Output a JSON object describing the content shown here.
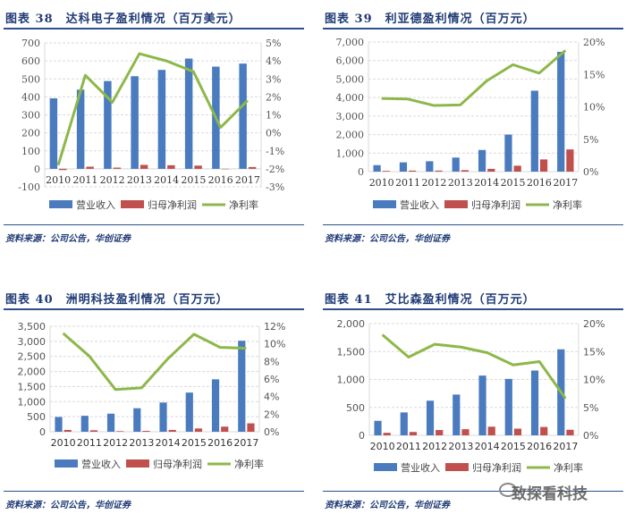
{
  "legend": {
    "revenue": "营业收入",
    "profit": "归母净利润",
    "margin": "净利率"
  },
  "source": "资料来源：公司公告，华创证券",
  "watermark": "致探看科技",
  "colors": {
    "revenue": "#4a7bbf",
    "profit": "#c0504d",
    "margin": "#8db849",
    "title": "#1f3a75"
  },
  "chart_data": [
    {
      "type": "bar+line",
      "figure_no": "图表 38",
      "title": "达科电子盈利情况（百万美元）",
      "categories": [
        "2010",
        "2011",
        "2012",
        "2013",
        "2014",
        "2015",
        "2016",
        "2017"
      ],
      "series": [
        {
          "name": "营业收入",
          "axis": "left",
          "type": "bar",
          "values": [
            392,
            440,
            488,
            515,
            550,
            613,
            568,
            585
          ]
        },
        {
          "name": "归母净利润",
          "axis": "left",
          "type": "bar",
          "values": [
            -7,
            12,
            7,
            22,
            20,
            18,
            0,
            10
          ]
        },
        {
          "name": "净利率",
          "axis": "right",
          "type": "line",
          "values": [
            -1.8,
            3.2,
            1.7,
            4.4,
            4.0,
            3.4,
            0.3,
            1.8
          ]
        }
      ],
      "ylim": [
        -100,
        700
      ],
      "yticks": [
        -100,
        0,
        100,
        200,
        300,
        400,
        500,
        600,
        700
      ],
      "ytick_labels": [
        "-100",
        "0",
        "100",
        "200",
        "300",
        "400",
        "500",
        "600",
        "700"
      ],
      "y2lim": [
        -3,
        5
      ],
      "y2ticks": [
        -3,
        -2,
        -1,
        0,
        1,
        2,
        3,
        4,
        5
      ],
      "y2tick_labels": [
        "-3%",
        "-2%",
        "-1%",
        "0%",
        "1%",
        "2%",
        "3%",
        "4%",
        "5%"
      ],
      "grid": true,
      "legend": "bottom"
    },
    {
      "type": "bar+line",
      "figure_no": "图表 39",
      "title": "利亚德盈利情况（百万元）",
      "categories": [
        "2010",
        "2011",
        "2012",
        "2013",
        "2014",
        "2015",
        "2016",
        "2017"
      ],
      "series": [
        {
          "name": "营业收入",
          "axis": "left",
          "type": "bar",
          "values": [
            350,
            500,
            560,
            760,
            1170,
            2000,
            4370,
            6470
          ]
        },
        {
          "name": "归母净利润",
          "axis": "left",
          "type": "bar",
          "values": [
            40,
            55,
            55,
            80,
            150,
            320,
            660,
            1200
          ]
        },
        {
          "name": "净利率",
          "axis": "right",
          "type": "line",
          "values": [
            11.3,
            11.2,
            10.2,
            10.3,
            14.0,
            16.5,
            15.2,
            18.7
          ]
        }
      ],
      "ylim": [
        0,
        7000
      ],
      "yticks": [
        0,
        1000,
        2000,
        3000,
        4000,
        5000,
        6000,
        7000
      ],
      "ytick_labels": [
        "0",
        "1,000",
        "2,000",
        "3,000",
        "4,000",
        "5,000",
        "6,000",
        "7,000"
      ],
      "y2lim": [
        0,
        20
      ],
      "y2ticks": [
        0,
        5,
        10,
        15,
        20
      ],
      "y2tick_labels": [
        "0%",
        "5%",
        "10%",
        "15%",
        "20%"
      ],
      "grid": true,
      "legend": "bottom"
    },
    {
      "type": "bar+line",
      "figure_no": "图表 40",
      "title": "洲明科技盈利情况（百万元）",
      "categories": [
        "2010",
        "2011",
        "2012",
        "2013",
        "2014",
        "2015",
        "2016",
        "2017"
      ],
      "series": [
        {
          "name": "营业收入",
          "axis": "left",
          "type": "bar",
          "values": [
            490,
            530,
            600,
            780,
            970,
            1300,
            1740,
            3020
          ]
        },
        {
          "name": "归母净利润",
          "axis": "left",
          "type": "bar",
          "values": [
            60,
            50,
            20,
            30,
            60,
            110,
            170,
            280
          ]
        },
        {
          "name": "净利率",
          "axis": "right",
          "type": "line",
          "values": [
            11.2,
            8.6,
            4.8,
            5.0,
            8.3,
            11.1,
            9.6,
            9.5
          ]
        }
      ],
      "ylim": [
        0,
        3500
      ],
      "yticks": [
        0,
        500,
        1000,
        1500,
        2000,
        2500,
        3000,
        3500
      ],
      "ytick_labels": [
        "0",
        "500",
        "1,000",
        "1,500",
        "2,000",
        "2,500",
        "3,000",
        "3,500"
      ],
      "y2lim": [
        0,
        12
      ],
      "y2ticks": [
        0,
        2,
        4,
        6,
        8,
        10,
        12
      ],
      "y2tick_labels": [
        "0%",
        "2%",
        "4%",
        "6%",
        "8%",
        "10%",
        "12%"
      ],
      "grid": true,
      "legend": "bottom"
    },
    {
      "type": "bar+line",
      "figure_no": "图表 41",
      "title": "艾比森盈利情况（百万元）",
      "categories": [
        "2010",
        "2011",
        "2012",
        "2013",
        "2014",
        "2015",
        "2016",
        "2017"
      ],
      "series": [
        {
          "name": "营业收入",
          "axis": "left",
          "type": "bar",
          "values": [
            260,
            410,
            620,
            730,
            1070,
            1010,
            1160,
            1540
          ]
        },
        {
          "name": "归母净利润",
          "axis": "left",
          "type": "bar",
          "values": [
            45,
            60,
            95,
            110,
            155,
            120,
            150,
            100
          ]
        },
        {
          "name": "净利率",
          "axis": "right",
          "type": "line",
          "values": [
            18.0,
            14.0,
            16.3,
            15.8,
            14.8,
            12.6,
            13.2,
            6.6
          ]
        }
      ],
      "ylim": [
        0,
        2000
      ],
      "yticks": [
        0,
        500,
        1000,
        1500,
        2000
      ],
      "ytick_labels": [
        "0",
        "500",
        "1,000",
        "1,500",
        "2,000"
      ],
      "y2lim": [
        0,
        20
      ],
      "y2ticks": [
        0,
        5,
        10,
        15,
        20
      ],
      "y2tick_labels": [
        "0%",
        "5%",
        "10%",
        "15%",
        "20%"
      ],
      "grid": true,
      "legend": "bottom"
    }
  ]
}
